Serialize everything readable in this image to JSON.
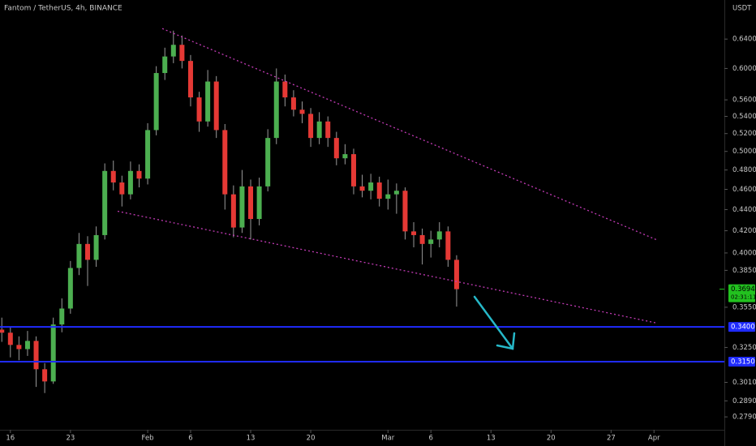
{
  "chart_data": {
    "type": "candlestick",
    "title": "Fantom / TetherUS, 4h, BINANCE",
    "y_axis_label": "USDT",
    "log_scale": true,
    "up_color": "#4caf50",
    "down_color": "#e53935",
    "wick_color": "#9a9a9a",
    "x": [
      -1,
      0,
      1,
      2,
      3,
      4,
      5,
      6,
      7,
      8,
      9,
      10,
      11,
      12,
      13,
      14,
      15,
      16,
      17,
      18,
      19,
      20,
      21,
      22,
      23,
      24,
      25,
      26,
      27,
      28,
      29,
      30,
      31,
      32,
      33,
      34,
      35,
      36,
      37,
      38,
      39,
      40,
      41,
      42,
      43,
      44,
      45,
      46,
      47,
      48,
      49,
      50,
      51,
      52
    ],
    "open": [
      0.338,
      0.3357,
      0.3268,
      0.3238,
      0.3297,
      0.3098,
      0.3016,
      0.3418,
      0.354,
      0.387,
      0.408,
      0.394,
      0.416,
      0.479,
      0.467,
      0.455,
      0.479,
      0.471,
      0.524,
      0.594,
      0.616,
      0.632,
      0.61,
      0.563,
      0.534,
      0.583,
      0.524,
      0.455,
      0.423,
      0.463,
      0.431,
      0.463,
      0.515,
      0.583,
      0.563,
      0.548,
      0.543,
      0.515,
      0.534,
      0.515,
      0.4925,
      0.497,
      0.463,
      0.4586,
      0.467,
      0.4506,
      0.455,
      0.4586,
      0.4194,
      0.416,
      0.408,
      0.412,
      0.4194,
      0.394
    ],
    "high": [
      0.347,
      0.34,
      0.333,
      0.337,
      0.333,
      0.314,
      0.347,
      0.362,
      0.393,
      0.418,
      0.415,
      0.424,
      0.487,
      0.49,
      0.474,
      0.489,
      0.486,
      0.532,
      0.603,
      0.628,
      0.652,
      0.645,
      0.618,
      0.57,
      0.598,
      0.59,
      0.531,
      0.464,
      0.48,
      0.47,
      0.472,
      0.525,
      0.6,
      0.592,
      0.572,
      0.558,
      0.55,
      0.545,
      0.54,
      0.522,
      0.508,
      0.503,
      0.475,
      0.476,
      0.473,
      0.47,
      0.466,
      0.462,
      0.428,
      0.422,
      0.42,
      0.428,
      0.424,
      0.398
    ],
    "low": [
      0.329,
      0.318,
      0.316,
      0.319,
      0.298,
      0.294,
      0.3,
      0.336,
      0.35,
      0.381,
      0.372,
      0.388,
      0.412,
      0.459,
      0.443,
      0.45,
      0.462,
      0.465,
      0.518,
      0.585,
      0.607,
      0.6,
      0.552,
      0.522,
      0.528,
      0.515,
      0.44,
      0.414,
      0.418,
      0.412,
      0.425,
      0.458,
      0.508,
      0.552,
      0.54,
      0.532,
      0.505,
      0.508,
      0.505,
      0.485,
      0.486,
      0.455,
      0.452,
      0.45,
      0.443,
      0.44,
      0.436,
      0.412,
      0.405,
      0.39,
      0.396,
      0.405,
      0.388,
      0.3555
    ],
    "close": [
      0.3357,
      0.3268,
      0.3238,
      0.3297,
      0.3098,
      0.3016,
      0.3418,
      0.354,
      0.387,
      0.408,
      0.394,
      0.416,
      0.479,
      0.467,
      0.455,
      0.479,
      0.471,
      0.524,
      0.594,
      0.616,
      0.632,
      0.61,
      0.563,
      0.534,
      0.583,
      0.524,
      0.455,
      0.423,
      0.463,
      0.431,
      0.463,
      0.515,
      0.583,
      0.563,
      0.548,
      0.543,
      0.515,
      0.534,
      0.515,
      0.4925,
      0.497,
      0.463,
      0.4586,
      0.467,
      0.4506,
      0.455,
      0.4586,
      0.4194,
      0.416,
      0.408,
      0.412,
      0.4194,
      0.394,
      0.3694
    ],
    "xlim": [
      -1.21,
      83.2
    ],
    "ylim": [
      0.2712,
      0.6974
    ],
    "xticks": [
      {
        "value": 0,
        "label": "16"
      },
      {
        "value": 7,
        "label": "23"
      },
      {
        "value": 16,
        "label": "Feb"
      },
      {
        "value": 21,
        "label": "6"
      },
      {
        "value": 28,
        "label": "13"
      },
      {
        "value": 35,
        "label": "20"
      },
      {
        "value": 44,
        "label": "Mar"
      },
      {
        "value": 49,
        "label": "6"
      },
      {
        "value": 56,
        "label": "13"
      },
      {
        "value": 63,
        "label": "20"
      },
      {
        "value": 70,
        "label": "27"
      },
      {
        "value": 75,
        "label": "Apr"
      }
    ],
    "yticks": [
      {
        "value": 0.64,
        "label": "0.6400"
      },
      {
        "value": 0.6,
        "label": "0.6000"
      },
      {
        "value": 0.56,
        "label": "0.5600"
      },
      {
        "value": 0.54,
        "label": "0.5400"
      },
      {
        "value": 0.52,
        "label": "0.5200"
      },
      {
        "value": 0.5,
        "label": "0.5000"
      },
      {
        "value": 0.48,
        "label": "0.4800"
      },
      {
        "value": 0.46,
        "label": "0.4600"
      },
      {
        "value": 0.44,
        "label": "0.4400"
      },
      {
        "value": 0.42,
        "label": "0.4200"
      },
      {
        "value": 0.4,
        "label": "0.4000"
      },
      {
        "value": 0.385,
        "label": "0.3850"
      },
      {
        "value": 0.355,
        "label": "0.3550"
      },
      {
        "value": 0.325,
        "label": "0.3250"
      },
      {
        "value": 0.301,
        "label": "0.3010"
      },
      {
        "value": 0.289,
        "label": "0.2890"
      },
      {
        "value": 0.279,
        "label": "0.2790"
      }
    ],
    "hlines": [
      {
        "value": 0.34,
        "label": "0.3400",
        "color": "#1f2bff"
      },
      {
        "value": 0.315,
        "label": "0.3150",
        "color": "#1f2bff"
      }
    ],
    "trendlines": [
      {
        "x": [
          17.7,
          75.4
        ],
        "y": [
          0.655,
          0.4114
        ],
        "color": "#c23bb5"
      },
      {
        "x": [
          12.5,
          75.4
        ],
        "y": [
          0.4384,
          0.3428
        ],
        "color": "#c23bb5"
      }
    ],
    "last_price": {
      "value": 0.3694,
      "label": "0.3694",
      "countdown": "02:31:11",
      "color": "#22c11f"
    }
  }
}
